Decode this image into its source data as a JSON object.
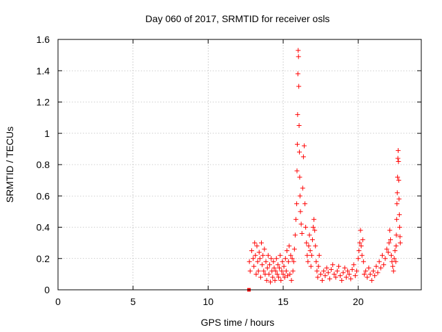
{
  "chart_data": {
    "type": "scatter",
    "title": "Day 060 of 2017, SRMTID for receiver osls",
    "xlabel": "GPS time / hours",
    "ylabel": "SRMTID / TECUs",
    "xlim": [
      0,
      24.2
    ],
    "ylim": [
      0,
      1.6
    ],
    "xticks": [
      0,
      5,
      10,
      15,
      20
    ],
    "xtick_labels": [
      "0",
      "5",
      "10",
      "15",
      "20"
    ],
    "yticks": [
      0,
      0.2,
      0.4,
      0.6,
      0.8,
      1.0,
      1.2,
      1.4,
      1.6
    ],
    "ytick_labels": [
      "0",
      "0.2",
      "0.4",
      "0.6",
      "0.8",
      "1",
      "1.2",
      "1.4",
      "1.6"
    ],
    "grid": true,
    "marker": "+",
    "color": "#ff0000",
    "series": [
      {
        "name": "SRMTID",
        "x": [
          12.75,
          12.8,
          12.9,
          13.0,
          13.05,
          13.1,
          13.15,
          13.2,
          13.25,
          13.3,
          13.35,
          13.4,
          13.45,
          13.5,
          13.55,
          13.6,
          13.65,
          13.7,
          13.75,
          13.8,
          13.85,
          13.9,
          13.95,
          14.0,
          14.05,
          14.1,
          14.15,
          14.2,
          14.25,
          14.3,
          14.35,
          14.4,
          14.45,
          14.5,
          14.55,
          14.6,
          14.65,
          14.7,
          14.75,
          14.8,
          14.85,
          14.9,
          14.95,
          15.0,
          15.05,
          15.1,
          15.15,
          15.2,
          15.25,
          15.3,
          15.35,
          15.4,
          15.45,
          15.5,
          15.55,
          15.6,
          15.65,
          15.7,
          15.75,
          15.8,
          15.85,
          15.9,
          15.92,
          15.94,
          15.96,
          15.98,
          16.0,
          16.02,
          16.04,
          16.06,
          16.08,
          16.1,
          16.12,
          16.15,
          16.2,
          16.25,
          16.3,
          16.35,
          16.4,
          16.45,
          16.5,
          16.55,
          16.6,
          16.65,
          16.7,
          16.75,
          16.8,
          16.85,
          16.9,
          16.95,
          17.0,
          17.05,
          17.1,
          17.15,
          17.2,
          17.25,
          17.3,
          17.35,
          17.4,
          17.5,
          17.6,
          17.7,
          17.8,
          17.9,
          18.0,
          18.1,
          18.2,
          18.3,
          18.4,
          18.5,
          18.6,
          18.7,
          18.8,
          18.9,
          19.0,
          19.1,
          19.2,
          19.3,
          19.4,
          19.5,
          19.6,
          19.7,
          19.8,
          19.9,
          20.0,
          20.05,
          20.1,
          20.15,
          20.2,
          20.25,
          20.3,
          20.35,
          20.4,
          20.5,
          20.6,
          20.7,
          20.8,
          20.9,
          21.0,
          21.1,
          21.2,
          21.3,
          21.4,
          21.5,
          21.6,
          21.7,
          21.8,
          21.9,
          22.0,
          22.05,
          22.1,
          22.15,
          22.2,
          22.25,
          22.3,
          22.35,
          22.4,
          22.45,
          22.5,
          22.52,
          22.54,
          22.56,
          22.58,
          22.6,
          22.62,
          22.64,
          22.66,
          22.68,
          22.7,
          22.72,
          22.74,
          22.76,
          22.78,
          22.8
        ],
        "y": [
          0.18,
          0.12,
          0.25,
          0.2,
          0.15,
          0.3,
          0.22,
          0.1,
          0.28,
          0.18,
          0.12,
          0.24,
          0.2,
          0.08,
          0.3,
          0.16,
          0.22,
          0.12,
          0.26,
          0.1,
          0.18,
          0.06,
          0.14,
          0.22,
          0.1,
          0.16,
          0.05,
          0.2,
          0.12,
          0.08,
          0.18,
          0.14,
          0.06,
          0.12,
          0.2,
          0.1,
          0.16,
          0.08,
          0.14,
          0.22,
          0.06,
          0.12,
          0.18,
          0.1,
          0.15,
          0.08,
          0.2,
          0.12,
          0.25,
          0.09,
          0.18,
          0.28,
          0.1,
          0.22,
          0.06,
          0.2,
          0.12,
          0.18,
          0.26,
          0.35,
          0.45,
          0.55,
          0.76,
          0.93,
          1.12,
          1.38,
          1.53,
          1.49,
          1.3,
          1.05,
          0.88,
          0.72,
          0.6,
          0.5,
          0.42,
          0.36,
          0.65,
          0.85,
          0.92,
          0.55,
          0.4,
          0.3,
          0.22,
          0.18,
          0.28,
          0.35,
          0.25,
          0.15,
          0.22,
          0.32,
          0.4,
          0.45,
          0.38,
          0.28,
          0.18,
          0.12,
          0.08,
          0.15,
          0.22,
          0.1,
          0.06,
          0.12,
          0.09,
          0.14,
          0.11,
          0.07,
          0.13,
          0.16,
          0.1,
          0.08,
          0.12,
          0.15,
          0.09,
          0.06,
          0.11,
          0.14,
          0.08,
          0.12,
          0.1,
          0.07,
          0.13,
          0.16,
          0.09,
          0.12,
          0.2,
          0.25,
          0.3,
          0.38,
          0.28,
          0.22,
          0.32,
          0.18,
          0.1,
          0.12,
          0.08,
          0.14,
          0.1,
          0.06,
          0.12,
          0.09,
          0.15,
          0.11,
          0.18,
          0.14,
          0.22,
          0.16,
          0.2,
          0.26,
          0.24,
          0.3,
          0.38,
          0.32,
          0.22,
          0.18,
          0.15,
          0.12,
          0.2,
          0.25,
          0.18,
          0.28,
          0.35,
          0.45,
          0.55,
          0.62,
          0.72,
          0.84,
          0.89,
          0.82,
          0.7,
          0.58,
          0.48,
          0.4,
          0.34,
          0.3
        ],
        "flagged_points": [
          {
            "x": 12.72,
            "y": 0.0
          }
        ]
      }
    ]
  }
}
